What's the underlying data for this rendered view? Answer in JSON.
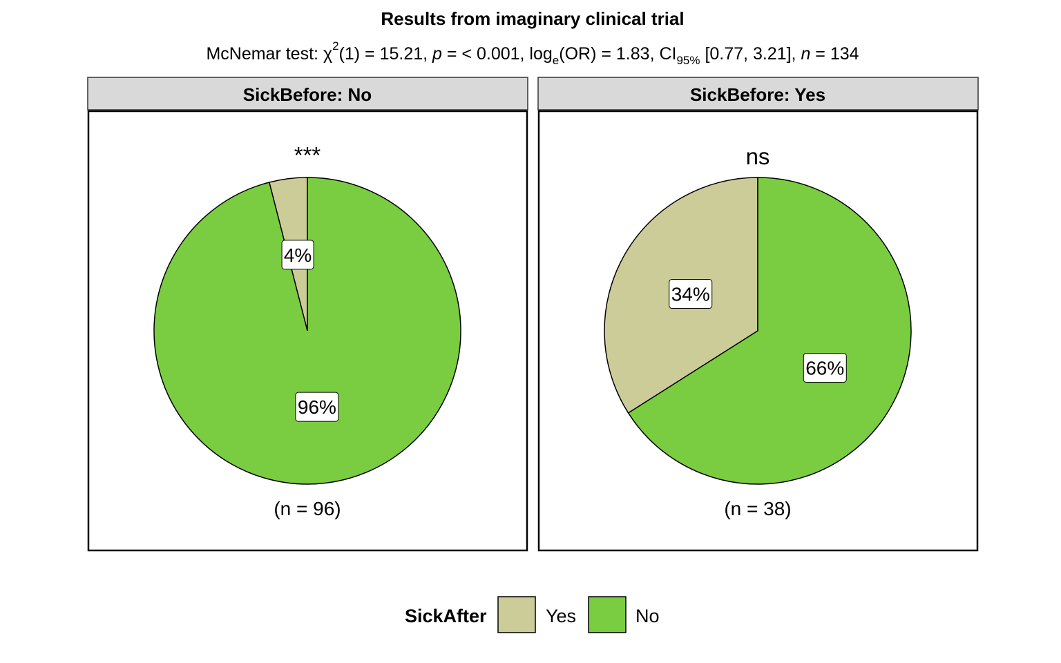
{
  "chart_data": {
    "type": "pie",
    "title": "Results from imaginary clinical trial",
    "subtitle": {
      "prefix": "McNemar test: ",
      "chi": "χ",
      "chi_sup": "2",
      "df": "(1) = 15.21, ",
      "p": "p",
      "p_val": " = < 0.001, log",
      "log_sub": "e",
      "or": "(OR) = 1.83, CI",
      "ci_sub": "95%",
      "ci": " [0.77, 3.21], ",
      "n": "n",
      "n_val": " = 134"
    },
    "legend": {
      "title": "SickAfter",
      "position": "bottom",
      "entries": [
        {
          "label": "Yes",
          "color": "#CCCC99"
        },
        {
          "label": "No",
          "color": "#7ACC40"
        }
      ]
    },
    "facets": [
      {
        "strip": "SickBefore: No",
        "significance": "***",
        "n_label": "(n = 96)",
        "slices": [
          {
            "name": "Yes",
            "percent": 4,
            "label": "4%",
            "color": "#CCCC99"
          },
          {
            "name": "No",
            "percent": 96,
            "label": "96%",
            "color": "#7ACC40"
          }
        ]
      },
      {
        "strip": "SickBefore: Yes",
        "significance": "ns",
        "n_label": "(n = 38)",
        "slices": [
          {
            "name": "Yes",
            "percent": 34,
            "label": "34%",
            "color": "#CCCC99"
          },
          {
            "name": "No",
            "percent": 66,
            "label": "66%",
            "color": "#7ACC40"
          }
        ]
      }
    ]
  }
}
